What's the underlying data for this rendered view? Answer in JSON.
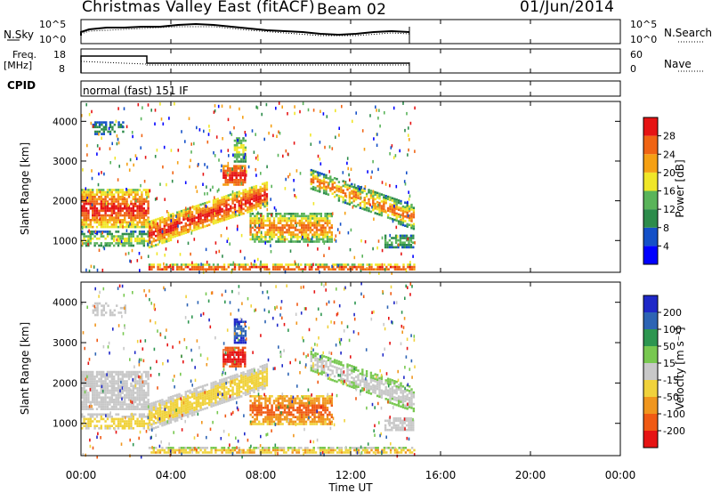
{
  "header": {
    "station": "Christmas Valley East (fitACF)",
    "beam": "Beam 02",
    "date": "01/Jun/2014"
  },
  "noise_panel": {
    "left_label": "N.Sky",
    "left_top_tick": "10^5",
    "left_bottom_tick": "10^0",
    "right_top_tick": "10^5",
    "right_bottom_tick": "10^0",
    "right_label": "N.Search"
  },
  "freq_panel": {
    "left_label_line1": "Freq.",
    "left_label_line2": "[MHz]",
    "left_top_tick": "18",
    "left_bottom_tick": "8",
    "right_top_tick": "60",
    "right_bottom_tick": "0",
    "right_label": "Nave"
  },
  "cpid_panel": {
    "label": "CPID",
    "program": "normal (fast) 151 IF"
  },
  "chart_data": [
    {
      "type": "heatmap",
      "name": "power",
      "ylabel": "Slant Range [km]",
      "yticks": [
        "1000",
        "2000",
        "3000",
        "4000"
      ],
      "colorbar_label": "Power [dB]",
      "colorbar_ticks": [
        "4",
        "8",
        "12",
        "16",
        "20",
        "24",
        "28"
      ],
      "colorbar_colors": [
        "#0000ff",
        "#1450c8",
        "#2d8c4b",
        "#5ab45a",
        "#f0e628",
        "#f5a014",
        "#f06414",
        "#e61414"
      ],
      "data_end_time": "14:50",
      "xlim": [
        "00:00",
        "24:00"
      ],
      "ylim_km": [
        200,
        4500
      ]
    },
    {
      "type": "heatmap",
      "name": "velocity",
      "ylabel": "Slant Range [km]",
      "yticks": [
        "1000",
        "2000",
        "3000",
        "4000"
      ],
      "colorbar_label": "Velocity [m s⁻¹]",
      "colorbar_ticks": [
        "200",
        "100",
        "50",
        "15",
        "-15",
        "-50",
        "-100",
        "-200"
      ],
      "colorbar_colors": [
        "#1e28c8",
        "#2d64b4",
        "#2d9650",
        "#78c850",
        "#c8c8c8",
        "#f0d23c",
        "#f0961e",
        "#f05a14",
        "#e61414"
      ],
      "xlabel": "Time UT",
      "xticks": [
        "00:00",
        "04:00",
        "08:00",
        "12:00",
        "16:00",
        "20:00",
        "00:00"
      ],
      "data_end_time": "14:50",
      "xlim": [
        "00:00",
        "24:00"
      ],
      "ylim_km": [
        200,
        4500
      ]
    }
  ],
  "colors": {
    "axis": "#000000",
    "ground_scatter": "#c0c0c0"
  }
}
